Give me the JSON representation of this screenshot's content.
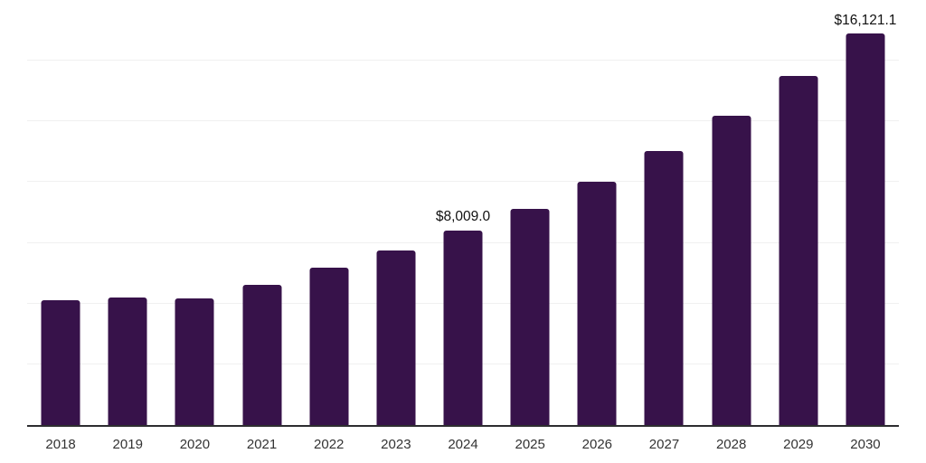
{
  "chart_data": {
    "type": "bar",
    "title": "",
    "xlabel": "",
    "ylabel": "",
    "categories": [
      "2018",
      "2019",
      "2020",
      "2021",
      "2022",
      "2023",
      "2024",
      "2025",
      "2026",
      "2027",
      "2028",
      "2029",
      "2030"
    ],
    "values": [
      5140,
      5250,
      5218,
      5785,
      6480,
      7190,
      8009.0,
      8905,
      10020,
      11270,
      12720,
      14380,
      16121.1
    ],
    "value_labels": [
      "",
      "",
      "",
      "",
      "",
      "",
      "$8,009.0",
      "",
      "",
      "",
      "",
      "",
      "$16,121.1"
    ],
    "ylim": [
      0,
      17500
    ],
    "gridline_step": 2500,
    "grid": "horizontal",
    "legend": "none",
    "colors": {
      "bar": "#37124A",
      "gridline": "#f0f0f0",
      "axis_line": "#2d2d30",
      "tick_label": "#333333",
      "value_label": "#111111",
      "background": "#ffffff"
    }
  }
}
